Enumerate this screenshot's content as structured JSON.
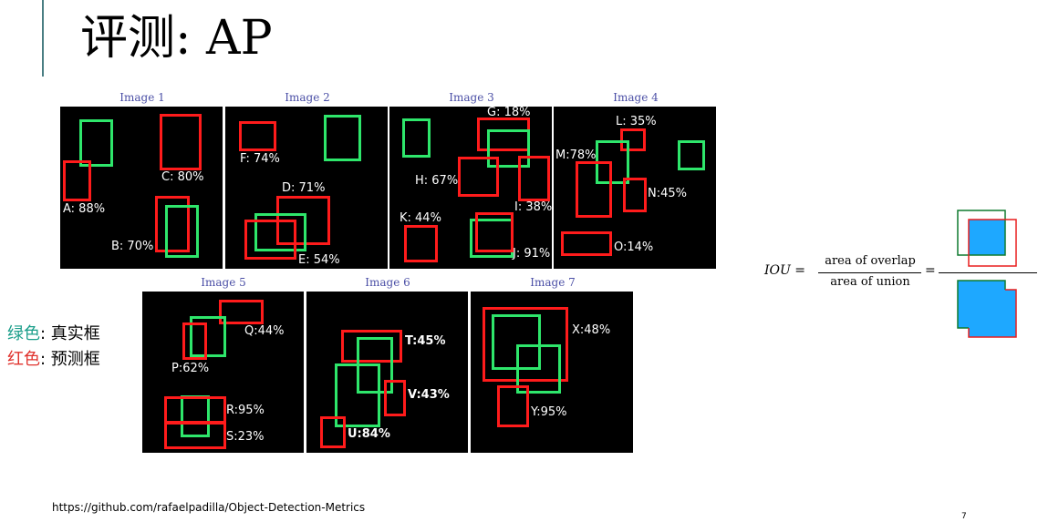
{
  "slide": {
    "title": "评测: AP",
    "footer_link": "https://github.com/rafaelpadilla/Object-Detection-Metrics",
    "page_number": "7"
  },
  "legend": {
    "green_label": "绿色",
    "green_rest": ": 真实框",
    "red_label": "红色",
    "red_rest": ": 预测框",
    "green_color": "#1a9e8a",
    "red_color": "#e0312c"
  },
  "colors": {
    "ground_truth_box": "#2ee66b",
    "detection_box": "#ff1b1b",
    "image_label": "#4b4fa6",
    "iou_overlap_fill": "#1ea8ff"
  },
  "images": [
    {
      "label": "Image 1",
      "detections": [
        "A: 88%",
        "B: 70%",
        "C: 80%"
      ]
    },
    {
      "label": "Image 2",
      "detections": [
        "D: 71%",
        "E: 54%",
        "F: 74%"
      ]
    },
    {
      "label": "Image 3",
      "detections": [
        "G: 18%",
        "H: 67%",
        "I: 38%",
        "J: 91%",
        "K: 44%"
      ]
    },
    {
      "label": "Image 4",
      "detections": [
        "L: 35%",
        "M:78%",
        "N:45%",
        "O:14%"
      ]
    },
    {
      "label": "Image 5",
      "detections": [
        "P:62%",
        "Q:44%",
        "R:95%",
        "S:23%"
      ]
    },
    {
      "label": "Image 6",
      "detections": [
        "T:45%",
        "U:84%",
        "V:43%"
      ]
    },
    {
      "label": "Image 7",
      "detections": [
        "X:48%",
        "Y:95%"
      ]
    }
  ],
  "formula": {
    "lhs": "IOU =",
    "numerator": "area of overlap",
    "denominator": "area of union",
    "equals": "="
  }
}
